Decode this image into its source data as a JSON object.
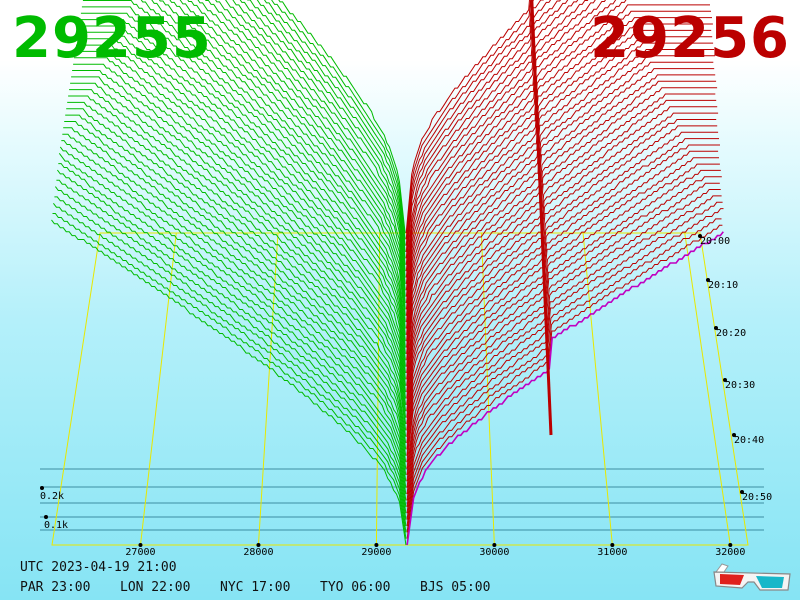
{
  "header": {
    "bid_price": "29255",
    "ask_price": "29256",
    "colors": {
      "bid": "#00bb00",
      "ask": "#bb0000"
    }
  },
  "footer": {
    "utc": "UTC 2023-04-19 21:00",
    "timezones": [
      {
        "label": "PAR 23:00"
      },
      {
        "label": "LON 22:00"
      },
      {
        "label": "NYC 17:00"
      },
      {
        "label": "TYO 06:00"
      },
      {
        "label": "BJS 05:00"
      }
    ]
  },
  "icons": {
    "corner": "3d-glasses-icon"
  },
  "chart_data": {
    "type": "area",
    "x_ticks": [
      "27000",
      "28000",
      "29000",
      "30000",
      "31000",
      "32000"
    ],
    "y_ticks": [
      "0.2k",
      "0.1k"
    ],
    "time_ticks": [
      "20:00",
      "20:10",
      "20:20",
      "20:30",
      "20:40",
      "20:50"
    ],
    "x_range": [
      26250,
      32150
    ],
    "bid_color": "#00bb00",
    "ask_color": "#bb0000",
    "grid_color": "#e8e800",
    "snapshot_count": 50
  }
}
